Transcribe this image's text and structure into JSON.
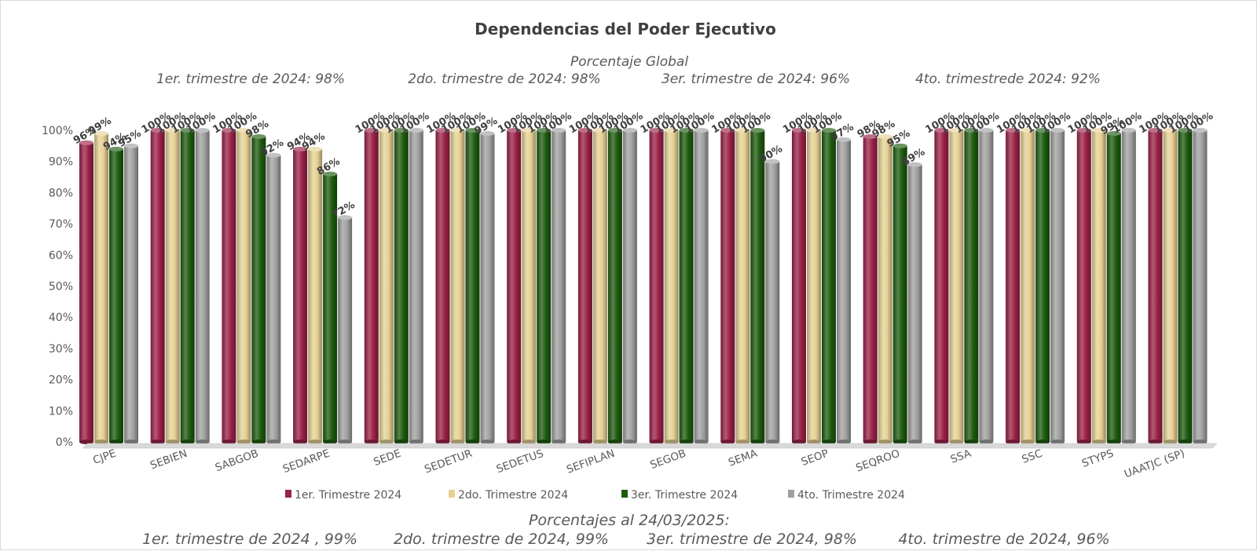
{
  "chart_data": {
    "type": "bar",
    "title": "Dependencias del Poder Ejecutivo",
    "subtitle": "Porcentaje Global",
    "period_summaries": [
      "1er. trimestre de 2024: 98%",
      "2do. trimestre de 2024: 98%",
      "3er. trimestre de 2024: 96%",
      "4to. trimestrede 2024:  92%"
    ],
    "footer_title": "Porcentajes al 24/03/2025:",
    "footer_summaries": [
      "1er. trimestre de 2024 , 99%",
      "2do. trimestre de 2024, 99%",
      "3er. trimestre de 2024, 98%",
      "4to. trimestre de 2024, 96%"
    ],
    "categories": [
      "CJPE",
      "SEBIEN",
      "SABGOB",
      "SEDARPE",
      "SEDE",
      "SEDETUR",
      "SEDETUS",
      "SEFIPLAN",
      "SEGOB",
      "SEMA",
      "SEOP",
      "SEQROO",
      "SSA",
      "SSC",
      "STYPS",
      "UAATJC (SP)"
    ],
    "series": [
      {
        "name": "1er. Trimestre 2024",
        "color": "#9b2247",
        "values": [
          96,
          100,
          100,
          94,
          100,
          100,
          100,
          100,
          100,
          100,
          100,
          98,
          100,
          100,
          100,
          100
        ]
      },
      {
        "name": "2do. Trimestre 2024",
        "color": "#e6d194",
        "values": [
          99,
          100,
          100,
          94,
          100,
          100,
          100,
          100,
          100,
          100,
          100,
          98,
          100,
          100,
          100,
          100
        ]
      },
      {
        "name": "3er. Trimestre 2024",
        "color": "#1e5b0f",
        "values": [
          94,
          100,
          98,
          86,
          100,
          100,
          100,
          100,
          100,
          100,
          100,
          95,
          100,
          100,
          99,
          100
        ]
      },
      {
        "name": "4to. Trimestre 2024",
        "color": "#a0a0a0",
        "values": [
          95,
          100,
          92,
          72,
          100,
          99,
          100,
          100,
          100,
          90,
          97,
          89,
          100,
          100,
          100,
          100
        ]
      }
    ],
    "y_ticks": [
      "0%",
      "10%",
      "20%",
      "30%",
      "40%",
      "50%",
      "60%",
      "70%",
      "80%",
      "90%",
      "100%"
    ],
    "ylim": [
      0,
      100
    ],
    "grid": false,
    "legend_position": "bottom"
  }
}
